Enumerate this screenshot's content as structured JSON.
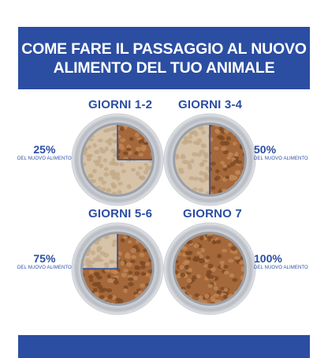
{
  "header": {
    "line1": "COME FARE IL PASSAGGIO AL NUOVO",
    "line2": "ALIMENTO DEL TUO ANIMALE"
  },
  "steps": [
    {
      "period": "GIORNI 1-2",
      "percent": "25%",
      "caption": "DEL NUOVO ALIMENTO",
      "new_fraction": 0.25
    },
    {
      "period": "GIORNI 3-4",
      "percent": "50%",
      "caption": "DEL NUOVO ALIMENTO",
      "new_fraction": 0.5
    },
    {
      "period": "GIORNI 5-6",
      "percent": "75%",
      "caption": "DEL NUOVO ALIMENTO",
      "new_fraction": 0.75
    },
    {
      "period": "GIORNO 7",
      "percent": "100%",
      "caption": "DEL NUOVO ALIMENTO",
      "new_fraction": 1.0
    }
  ],
  "colors": {
    "brand_blue": "#2b4ea2",
    "kibble_new": "#a5683a",
    "kibble_old": "#d6c3a8",
    "bowl_rim": "#c9ccd1"
  }
}
